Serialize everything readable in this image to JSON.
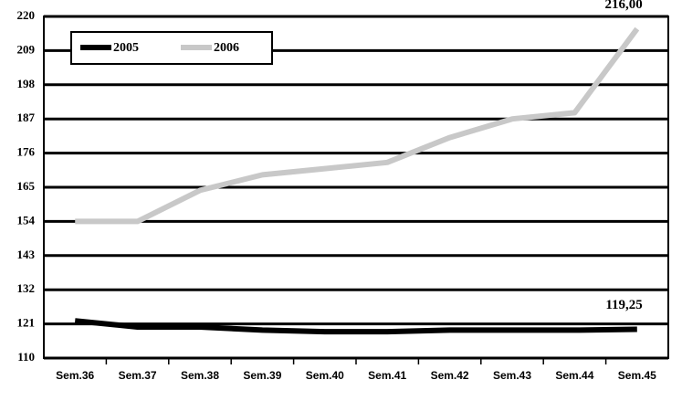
{
  "chart_data": {
    "type": "line",
    "categories": [
      "Sem.36",
      "Sem.37",
      "Sem.38",
      "Sem.39",
      "Sem.40",
      "Sem.41",
      "Sem.42",
      "Sem.43",
      "Sem.44",
      "Sem.45"
    ],
    "series": [
      {
        "name": "2005",
        "color": "#000000",
        "values": [
          122,
          120,
          120,
          119,
          118.5,
          118.5,
          119,
          119,
          119,
          119.25
        ],
        "value_labels": [
          null,
          null,
          null,
          null,
          null,
          null,
          null,
          null,
          null,
          "119,25"
        ]
      },
      {
        "name": "2006",
        "color": "#c8c8c8",
        "values": [
          154,
          154,
          164,
          169,
          171,
          173,
          181,
          187,
          189,
          216
        ],
        "value_labels": [
          null,
          null,
          null,
          null,
          null,
          null,
          null,
          null,
          null,
          "216,00"
        ]
      }
    ],
    "ylim": [
      110,
      220
    ],
    "yticks": [
      110,
      121,
      132,
      143,
      154,
      165,
      176,
      187,
      198,
      209,
      220
    ],
    "grid": true,
    "legend": "top-left"
  }
}
